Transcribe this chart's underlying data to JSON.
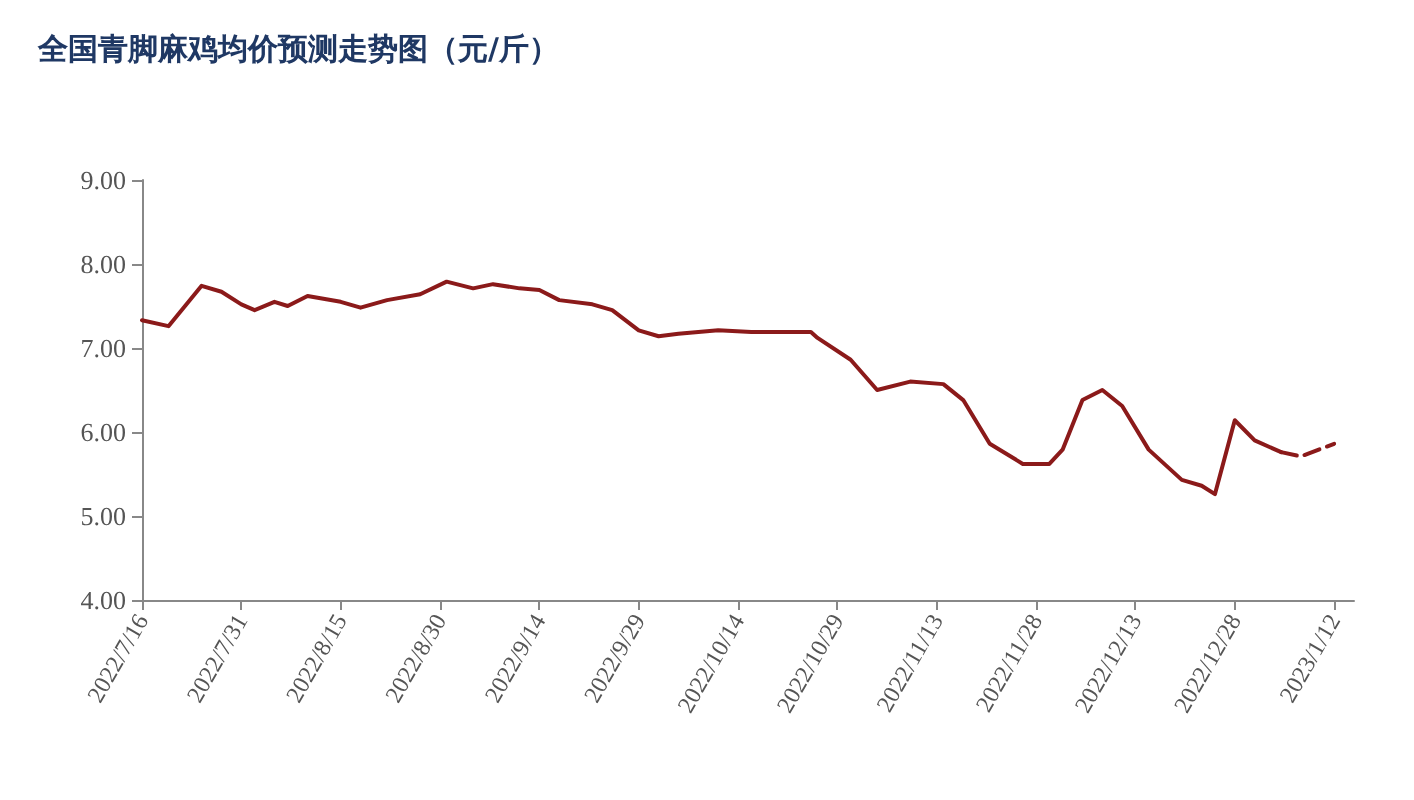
{
  "chart_data": {
    "type": "line",
    "title": "全国青脚麻鸡均价预测走势图（元/斤）",
    "series": [
      {
        "color": "#8b1a1a",
        "line_style": "solid",
        "x": [
          "2022-07-16",
          "2022-07-20",
          "2022-07-25",
          "2022-07-28",
          "2022-07-31",
          "2022-08-02",
          "2022-08-05",
          "2022-08-07",
          "2022-08-10",
          "2022-08-15",
          "2022-08-18",
          "2022-08-22",
          "2022-08-27",
          "2022-08-31",
          "2022-09-04",
          "2022-09-07",
          "2022-09-11",
          "2022-09-14",
          "2022-09-17",
          "2022-09-22",
          "2022-09-25",
          "2022-09-29",
          "2022-10-02",
          "2022-10-05",
          "2022-10-08",
          "2022-10-11",
          "2022-10-16",
          "2022-10-25",
          "2022-10-26",
          "2022-10-31",
          "2022-11-04",
          "2022-11-09",
          "2022-11-14",
          "2022-11-17",
          "2022-11-21",
          "2022-11-26",
          "2022-11-30",
          "2022-12-02",
          "2022-12-05",
          "2022-12-08",
          "2022-12-11",
          "2022-12-15",
          "2022-12-20",
          "2022-12-23",
          "2022-12-25",
          "2022-12-28",
          "2022-12-31",
          "2023-01-04"
        ],
        "values": [
          7.33,
          7.26,
          7.74,
          7.67,
          7.52,
          7.45,
          7.55,
          7.5,
          7.62,
          7.55,
          7.48,
          7.57,
          7.64,
          7.79,
          7.71,
          7.76,
          7.71,
          7.69,
          7.57,
          7.52,
          7.45,
          7.21,
          7.14,
          7.17,
          7.19,
          7.21,
          7.19,
          7.19,
          7.12,
          6.86,
          6.5,
          6.6,
          6.57,
          6.38,
          5.86,
          5.62,
          5.62,
          5.79,
          6.38,
          6.5,
          6.31,
          5.79,
          5.43,
          5.36,
          5.26,
          6.14,
          5.9,
          5.76
        ]
      },
      {
        "color": "#8b1a1a",
        "line_style": "dashed",
        "x": [
          "2023-01-04",
          "2023-01-07",
          "2023-01-08",
          "2023-01-12"
        ],
        "values": [
          5.76,
          5.71,
          5.74,
          5.86
        ]
      }
    ],
    "xlim": [
      "2022-07-16",
      "2023-01-15"
    ],
    "xticks": [
      {
        "value": "2022-07-16",
        "label": "2022/7/16"
      },
      {
        "value": "2022-07-31",
        "label": "2022/7/31"
      },
      {
        "value": "2022-08-15",
        "label": "2022/8/15"
      },
      {
        "value": "2022-08-30",
        "label": "2022/8/30"
      },
      {
        "value": "2022-09-14",
        "label": "2022/9/14"
      },
      {
        "value": "2022-09-29",
        "label": "2022/9/29"
      },
      {
        "value": "2022-10-14",
        "label": "2022/10/14"
      },
      {
        "value": "2022-10-29",
        "label": "2022/10/29"
      },
      {
        "value": "2022-11-13",
        "label": "2022/11/13"
      },
      {
        "value": "2022-11-28",
        "label": "2022/11/28"
      },
      {
        "value": "2022-12-13",
        "label": "2022/12/13"
      },
      {
        "value": "2022-12-28",
        "label": "2022/12/28"
      },
      {
        "value": "2023-01-12",
        "label": "2023/1/12"
      }
    ],
    "ylim": [
      4,
      9
    ],
    "yticks": [
      {
        "value": 4,
        "label": "4.00"
      },
      {
        "value": 5,
        "label": "5.00"
      },
      {
        "value": 6,
        "label": "6.00"
      },
      {
        "value": 7,
        "label": "7.00"
      },
      {
        "value": 8,
        "label": "8.00"
      },
      {
        "value": 9,
        "label": "9.00"
      }
    ],
    "grid": false,
    "marker": "none"
  }
}
